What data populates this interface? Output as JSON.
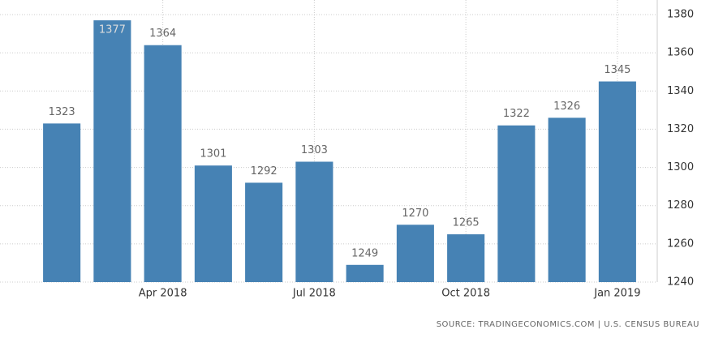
{
  "chart_data": {
    "type": "bar",
    "categories": [
      null,
      null,
      "Apr 2018",
      null,
      null,
      "Jul 2018",
      null,
      null,
      "Oct 2018",
      null,
      null,
      "Jan 2019"
    ],
    "values": [
      1323,
      1377,
      1364,
      1301,
      1292,
      1303,
      1249,
      1270,
      1265,
      1322,
      1326,
      1345
    ],
    "color": "#4682b4",
    "ylim": [
      1240,
      1380
    ],
    "yticks": [
      1240,
      1260,
      1280,
      1300,
      1320,
      1340,
      1360,
      1380
    ],
    "grid": true,
    "show_value_labels": true,
    "source": "SOURCE: TRADINGECONOMICS.COM | U.S. CENSUS BUREAU"
  }
}
